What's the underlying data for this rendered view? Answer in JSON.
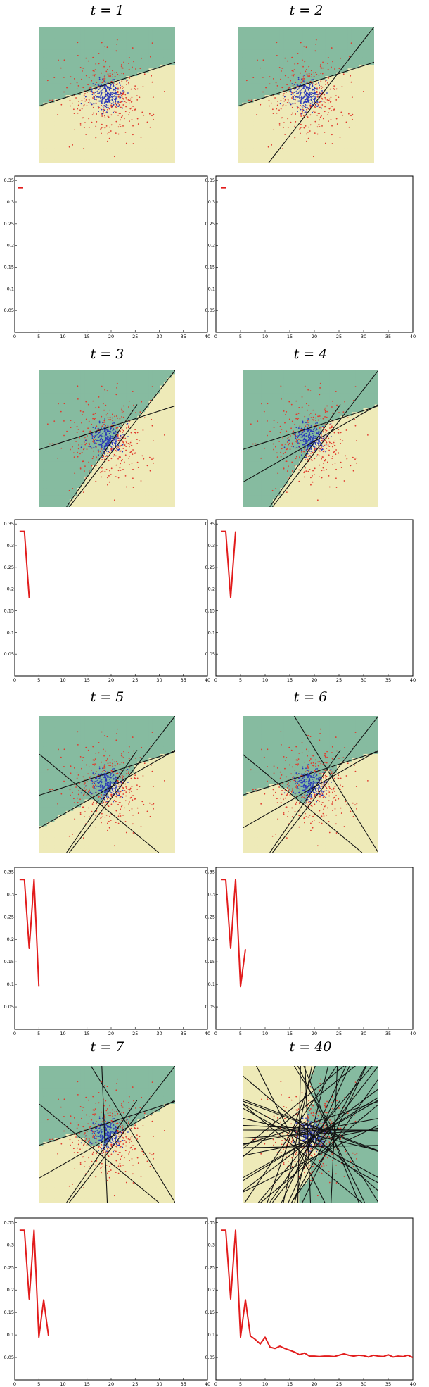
{
  "figure": {
    "panels": [
      {
        "title": "t = 1",
        "t": 1
      },
      {
        "title": "t = 2",
        "t": 2
      },
      {
        "title": "t = 3",
        "t": 3
      },
      {
        "title": "t = 4",
        "t": 4
      },
      {
        "title": "t = 5",
        "t": 5
      },
      {
        "title": "t = 6",
        "t": 6
      },
      {
        "title": "t = 7",
        "t": 7
      },
      {
        "title": "t = 40",
        "t": 40
      }
    ],
    "colors": {
      "region_a": "#86bba0",
      "region_b": "#eeeab8",
      "positive_points": "#e03a2c",
      "negative_points": "#2a38b8",
      "boundary_lines": "#111111",
      "error_curve": "#e21c1c"
    }
  },
  "chart_data": {
    "type": "line",
    "description_of_panels": "training error vs boosting round",
    "x_ticks": [
      0,
      5,
      10,
      15,
      20,
      25,
      30,
      35,
      40
    ],
    "y_ticks": [
      0.05,
      0.1,
      0.15,
      0.2,
      0.25,
      0.3,
      0.35
    ],
    "y_tick_labels": [
      "0.05",
      "0.1",
      "0.15",
      "0.2",
      "0.25",
      "0.3",
      "0.35"
    ],
    "xlim": [
      0,
      40
    ],
    "ylim": [
      0,
      0.36
    ],
    "error_by_round": [
      [
        1,
        0.333
      ],
      [
        2,
        0.333
      ],
      [
        3,
        0.18
      ],
      [
        4,
        0.333
      ],
      [
        5,
        0.095
      ],
      [
        6,
        0.178
      ],
      [
        7,
        0.098
      ],
      [
        8,
        0.09
      ],
      [
        9,
        0.08
      ],
      [
        10,
        0.095
      ],
      [
        11,
        0.073
      ],
      [
        12,
        0.07
      ],
      [
        13,
        0.075
      ],
      [
        14,
        0.07
      ],
      [
        15,
        0.066
      ],
      [
        16,
        0.062
      ],
      [
        17,
        0.056
      ],
      [
        18,
        0.06
      ],
      [
        19,
        0.053
      ],
      [
        20,
        0.053
      ],
      [
        21,
        0.052
      ],
      [
        22,
        0.053
      ],
      [
        23,
        0.053
      ],
      [
        24,
        0.052
      ],
      [
        25,
        0.055
      ],
      [
        26,
        0.058
      ],
      [
        27,
        0.055
      ],
      [
        28,
        0.053
      ],
      [
        29,
        0.055
      ],
      [
        30,
        0.054
      ],
      [
        31,
        0.051
      ],
      [
        32,
        0.055
      ],
      [
        33,
        0.053
      ],
      [
        34,
        0.052
      ],
      [
        35,
        0.056
      ],
      [
        36,
        0.051
      ],
      [
        37,
        0.053
      ],
      [
        38,
        0.052
      ],
      [
        39,
        0.055
      ],
      [
        40,
        0.05
      ]
    ]
  }
}
